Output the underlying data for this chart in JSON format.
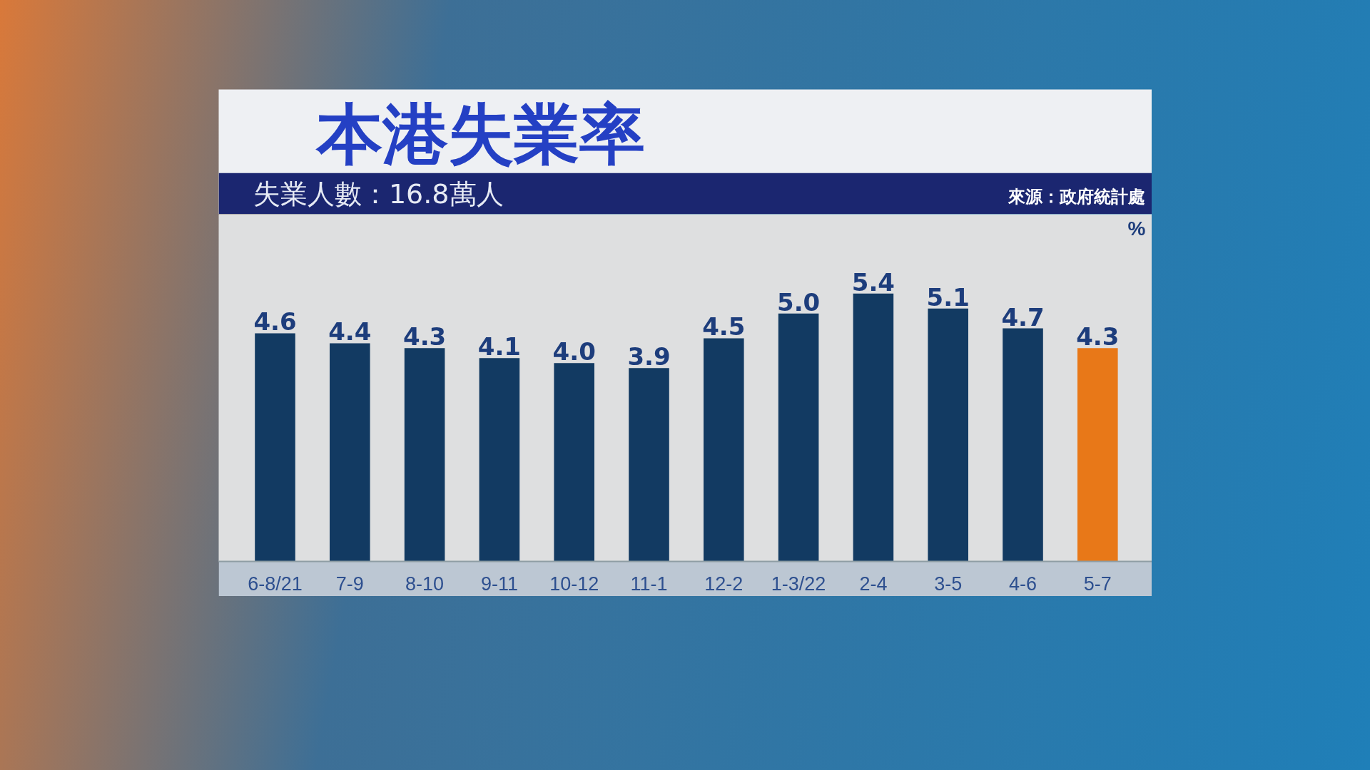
{
  "chart_data": {
    "type": "bar",
    "title": "本港失業率",
    "subtitle": "失業人數：16.8萬人",
    "annotations": [
      "來源：政府統計處"
    ],
    "ylabel": "%",
    "categories": [
      "6-8/21",
      "7-9",
      "8-10",
      "9-11",
      "10-12",
      "11-1",
      "12-2",
      "1-3/22",
      "2-4",
      "3-5",
      "4-6",
      "5-7"
    ],
    "values": [
      4.6,
      4.4,
      4.3,
      4.1,
      4.0,
      3.9,
      4.5,
      5.0,
      5.4,
      5.1,
      4.7,
      4.3
    ],
    "value_labels": [
      "4.6",
      "4.4",
      "4.3",
      "4.1",
      "4.0",
      "3.9",
      "4.5",
      "5.0",
      "5.4",
      "5.1",
      "4.7",
      "4.3"
    ],
    "colors": [
      "#123a62",
      "#123a62",
      "#123a62",
      "#123a62",
      "#123a62",
      "#123a62",
      "#123a62",
      "#123a62",
      "#123a62",
      "#123a62",
      "#123a62",
      "#e87818"
    ],
    "ylim": [
      0,
      7
    ],
    "tick_labels": "x"
  }
}
